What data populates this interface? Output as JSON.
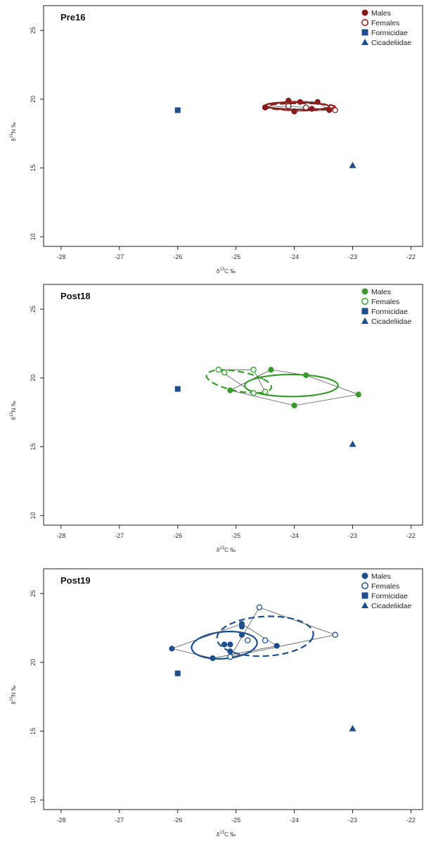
{
  "chart_data": [
    {
      "type": "scatter",
      "title": "Pre16",
      "xlabel": "δ13C ‰",
      "ylabel": "δ15N ‰",
      "xlim": [
        -28.3,
        -21.8
      ],
      "ylim": [
        9.3,
        26.8
      ],
      "xticks": [
        -28,
        -27,
        -26,
        -25,
        -24,
        -23,
        -22
      ],
      "yticks": [
        10,
        15,
        20,
        25
      ],
      "legend_position": "top-right",
      "color": "#8b1a1a",
      "males": [
        [
          -24.5,
          19.4
        ],
        [
          -24.1,
          19.9
        ],
        [
          -23.9,
          19.8
        ],
        [
          -24.0,
          19.1
        ],
        [
          -23.6,
          19.8
        ],
        [
          -23.4,
          19.2
        ],
        [
          -23.7,
          19.3
        ]
      ],
      "females": [
        [
          -24.5,
          19.4
        ],
        [
          -24.1,
          19.5
        ],
        [
          -23.3,
          19.2
        ],
        [
          -23.8,
          19.4
        ]
      ],
      "male_ellipse": {
        "cx": -23.95,
        "cy": 19.5,
        "rx": 0.55,
        "ry": 0.28,
        "angle_deg": -5
      },
      "female_ellipse": {
        "cx": -23.9,
        "cy": 19.45,
        "rx": 0.6,
        "ry": 0.25,
        "angle_deg": 0
      },
      "formicidae": [
        -26.0,
        19.2
      ],
      "cicadeliidae": [
        -23.0,
        15.2
      ]
    },
    {
      "type": "scatter",
      "title": "Post18",
      "xlabel": "δ13C ‰",
      "ylabel": "δ15N ‰",
      "xlim": [
        -28.3,
        -21.8
      ],
      "ylim": [
        9.3,
        26.8
      ],
      "xticks": [
        -28,
        -27,
        -26,
        -25,
        -24,
        -23,
        -22
      ],
      "yticks": [
        10,
        15,
        20,
        25
      ],
      "legend_position": "top-right",
      "color": "#3a9a2e",
      "males": [
        [
          -24.4,
          20.6
        ],
        [
          -23.8,
          20.2
        ],
        [
          -25.1,
          19.1
        ],
        [
          -24.0,
          18.0
        ],
        [
          -22.9,
          18.8
        ]
      ],
      "females": [
        [
          -25.3,
          20.6
        ],
        [
          -25.2,
          20.4
        ],
        [
          -24.7,
          20.6
        ],
        [
          -24.7,
          18.9
        ],
        [
          -24.5,
          19.0
        ]
      ],
      "male_ellipse": {
        "cx": -24.05,
        "cy": 19.45,
        "rx": 0.8,
        "ry": 0.8,
        "angle_deg": -3
      },
      "female_ellipse": {
        "cx": -24.95,
        "cy": 19.75,
        "rx": 0.45,
        "ry": 0.9,
        "angle_deg": 25
      },
      "formicidae": [
        -26.0,
        19.2
      ],
      "cicadeliidae": [
        -23.0,
        15.2
      ]
    },
    {
      "type": "scatter",
      "title": "Post19",
      "xlabel": "δ13C ‰",
      "ylabel": "δ15N ‰",
      "xlim": [
        -28.3,
        -21.8
      ],
      "ylim": [
        9.3,
        26.8
      ],
      "xticks": [
        -28,
        -27,
        -26,
        -25,
        -24,
        -23,
        -22
      ],
      "yticks": [
        10,
        15,
        20,
        25
      ],
      "legend_position": "top-right",
      "color": "#1f4e8c",
      "males": [
        [
          -26.1,
          21.0
        ],
        [
          -25.4,
          20.3
        ],
        [
          -25.2,
          21.3
        ],
        [
          -25.1,
          21.3
        ],
        [
          -25.1,
          20.8
        ],
        [
          -24.9,
          22.8
        ],
        [
          -24.9,
          22.6
        ],
        [
          -24.9,
          22.0
        ],
        [
          -24.3,
          21.2
        ]
      ],
      "females": [
        [
          -25.1,
          20.4
        ],
        [
          -24.8,
          21.6
        ],
        [
          -24.6,
          24.0
        ],
        [
          -24.5,
          21.6
        ],
        [
          -23.3,
          22.0
        ]
      ],
      "male_ellipse": {
        "cx": -25.2,
        "cy": 21.25,
        "rx": 0.55,
        "ry": 1.0,
        "angle_deg": -8
      },
      "female_ellipse": {
        "cx": -24.5,
        "cy": 21.9,
        "rx": 0.82,
        "ry": 1.45,
        "angle_deg": -5
      },
      "formicidae": [
        -26.0,
        19.2
      ],
      "cicadeliidae": [
        -23.0,
        15.2
      ]
    }
  ],
  "legend": {
    "males": "Males",
    "females": "Females",
    "formicidae": "Formicidae",
    "cicadeliidae": "Cicadeliidae"
  },
  "colors": {
    "reference_markers": "#1f4e8c",
    "hull": "#555555",
    "axis": "#222222"
  }
}
